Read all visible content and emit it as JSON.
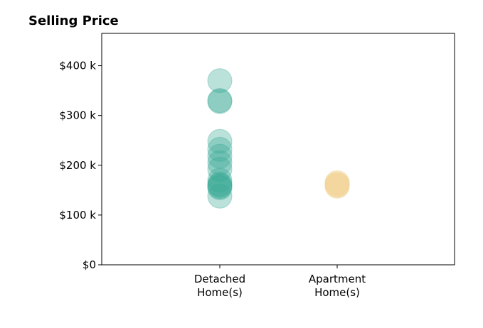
{
  "chart_data": {
    "type": "scatter",
    "title": "Selling Price",
    "xlabel": "",
    "ylabel": "",
    "categories": [
      "Detached\nHome(s)",
      "Apartment\nHome(s)"
    ],
    "ylim": [
      0,
      465000
    ],
    "yticks": [
      0,
      100000,
      200000,
      300000,
      400000
    ],
    "ytick_labels": [
      "$0",
      "$100 k",
      "$200 k",
      "$300 k",
      "$400 k"
    ],
    "grid": false,
    "legend": "none",
    "series": [
      {
        "category_index": 0,
        "color": "#3aaa96",
        "opacity": 0.35,
        "values": [
          370000,
          330000,
          328000,
          248000,
          232000,
          218000,
          205000,
          192000,
          170000,
          162000,
          160000,
          157000,
          155000,
          138000
        ]
      },
      {
        "category_index": 1,
        "color": "#f3d69a",
        "opacity": 0.55,
        "values": [
          165000,
          162000,
          160000,
          158000
        ]
      }
    ]
  }
}
